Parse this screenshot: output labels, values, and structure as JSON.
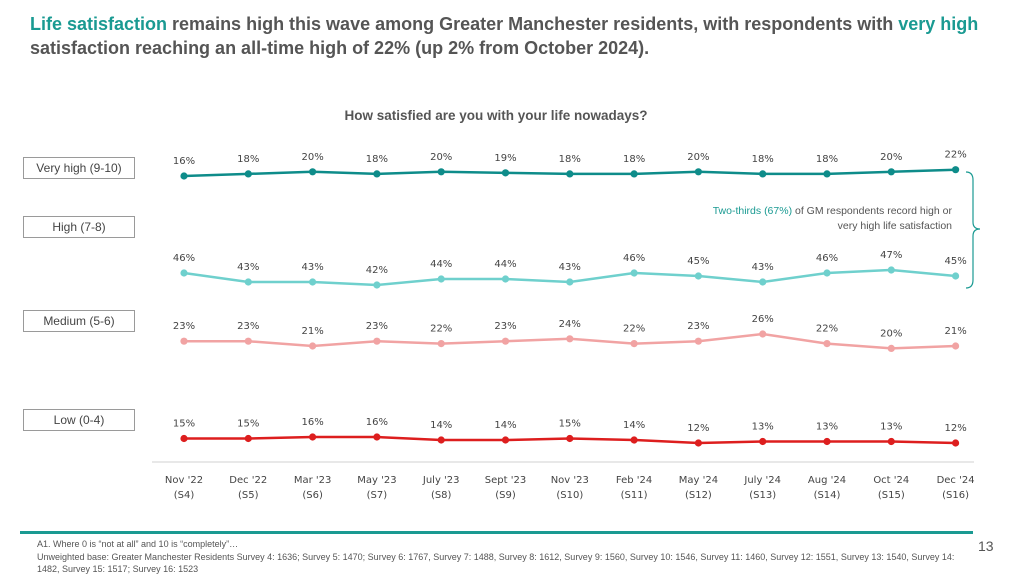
{
  "headline": {
    "hl1": "Life satisfaction",
    "text1": " remains high this wave among Greater Manchester residents, with respondents with ",
    "hl2": "very high",
    "text2": " satisfaction reaching an all-time high of 22% (up 2% from October 2024)."
  },
  "annotation": {
    "highlight": "Two-thirds (67%)",
    "text": " of GM respondents record high or very high life satisfaction"
  },
  "footnote": {
    "line1": "A1. Where 0 is “not at all” and 10 is “completely”…",
    "line2": "Unweighted base: Greater Manchester Residents Survey 4: 1636; Survey 5: 1470; Survey 6: 1767, Survey 7: 1488, Survey 8: 1612, Survey 9: 1560, Survey 10: 1546, Survey 11: 1460, Survey 12: 1551, Survey 13: 1540, Survey 14: 1482, Survey 15: 1517; Survey 16: 1523"
  },
  "page_number": "13",
  "chart_data": {
    "type": "line",
    "title": "How satisfied are you with your life nowadays?",
    "categories": [
      "Nov '22",
      "Dec '22",
      "Mar '23",
      "May '23",
      "July '23",
      "Sept '23",
      "Nov '23",
      "Feb '24",
      "May '24",
      "July '24",
      "Aug '24",
      "Oct '24",
      "Dec '24"
    ],
    "sublabels": [
      "(S4)",
      "(S5)",
      "(S6)",
      "(S7)",
      "(S8)",
      "(S9)",
      "(S10)",
      "(S11)",
      "(S12)",
      "(S13)",
      "(S14)",
      "(S15)",
      "(S16)"
    ],
    "series": [
      {
        "name": "Very high (9-10)",
        "color": "#0e8c8a",
        "values": [
          16,
          18,
          20,
          18,
          20,
          19,
          18,
          18,
          20,
          18,
          18,
          20,
          22
        ]
      },
      {
        "name": "High (7-8)",
        "color": "#6fd0cd",
        "values": [
          46,
          43,
          43,
          42,
          44,
          44,
          43,
          46,
          45,
          43,
          46,
          47,
          45
        ]
      },
      {
        "name": "Medium (5-6)",
        "color": "#f1a3a3",
        "values": [
          23,
          23,
          21,
          23,
          22,
          23,
          24,
          22,
          23,
          26,
          22,
          20,
          21
        ]
      },
      {
        "name": "Low (0-4)",
        "color": "#dd1e1e",
        "values": [
          15,
          15,
          16,
          16,
          14,
          14,
          15,
          14,
          12,
          13,
          13,
          13,
          12
        ]
      }
    ],
    "unit": "%"
  }
}
